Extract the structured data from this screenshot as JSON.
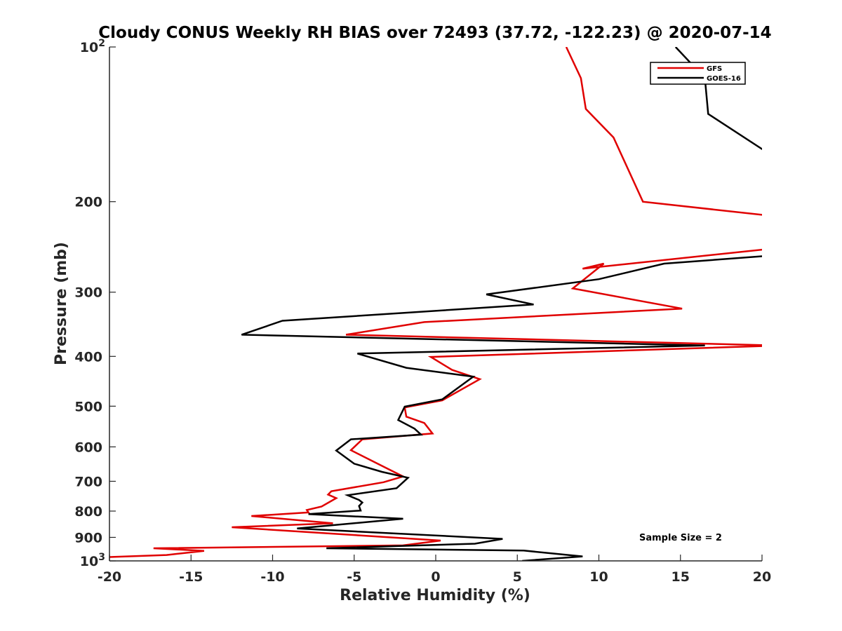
{
  "chart_data": {
    "type": "line",
    "title": "Cloudy CONUS Weekly RH BIAS over 72493 (37.72, -122.23) @ 2020-07-14",
    "xlabel": "Relative Humidity (%)",
    "ylabel": "Pressure (mb)",
    "xlim": [
      -20,
      20
    ],
    "ylim": [
      100,
      1000
    ],
    "y_scale": "log",
    "y_reversed": true,
    "grid": false,
    "legend_position": "top-right",
    "xticks": [
      -20,
      -15,
      -10,
      -5,
      0,
      5,
      10,
      15,
      20
    ],
    "xtick_labels": [
      "-20",
      "-15",
      "-10",
      "-5",
      "0",
      "5",
      "10",
      "15",
      "20"
    ],
    "yticks": [
      100,
      200,
      300,
      400,
      500,
      600,
      700,
      800,
      900,
      1000
    ],
    "ytick_labels": [
      {
        "base": "10",
        "exp": "2"
      },
      {
        "base": "200"
      },
      {
        "base": "300"
      },
      {
        "base": "400"
      },
      {
        "base": "500"
      },
      {
        "base": "600"
      },
      {
        "base": "700"
      },
      {
        "base": "800"
      },
      {
        "base": "900"
      },
      {
        "base": "10",
        "exp": "3"
      }
    ],
    "annotation": "Sample Size = 2",
    "series": [
      {
        "name": "GFS",
        "color": "#e00000",
        "points": [
          [
            8.0,
            100
          ],
          [
            8.9,
            115
          ],
          [
            9.2,
            132
          ],
          [
            10.9,
            150
          ],
          [
            12.7,
            200
          ],
          [
            20.5,
            213
          ],
          [
            null,
            null
          ],
          [
            21.0,
            246
          ],
          [
            9.0,
            270
          ],
          [
            10.3,
            264
          ],
          [
            8.4,
            295
          ],
          [
            15.1,
            323
          ],
          [
            -0.7,
            343
          ],
          [
            -5.5,
            363
          ],
          [
            21.0,
            381
          ],
          [
            -0.3,
            401
          ],
          [
            1.0,
            425
          ],
          [
            2.7,
            443
          ],
          [
            0.4,
            487
          ],
          [
            -1.9,
            503
          ],
          [
            -1.8,
            524
          ],
          [
            -0.7,
            539
          ],
          [
            -0.2,
            565
          ],
          [
            -4.5,
            580
          ],
          [
            -5.2,
            609
          ],
          [
            -3.1,
            658
          ],
          [
            -2.0,
            685
          ],
          [
            -3.2,
            703
          ],
          [
            -6.4,
            732
          ],
          [
            -6.6,
            743
          ],
          [
            -6.1,
            755
          ],
          [
            -7.0,
            784
          ],
          [
            -7.9,
            796
          ],
          [
            -7.8,
            805
          ],
          [
            -11.3,
            818
          ],
          [
            -6.3,
            845
          ],
          [
            -12.5,
            860
          ],
          [
            0.3,
            913
          ],
          [
            -2.0,
            933
          ],
          [
            -17.3,
            945
          ],
          [
            -14.2,
            956
          ],
          [
            -16.5,
            974
          ],
          [
            -20.0,
            983
          ]
        ]
      },
      {
        "name": "GOES-16",
        "color": "#000000",
        "points": [
          [
            14.7,
            100
          ],
          [
            16.5,
            115
          ],
          [
            16.7,
            135
          ],
          [
            20.0,
            158
          ],
          [
            20.3,
            160
          ],
          [
            null,
            null
          ],
          [
            20.3,
            255
          ],
          [
            14.0,
            264
          ],
          [
            10.0,
            283
          ],
          [
            3.1,
            303
          ],
          [
            6.0,
            317
          ],
          [
            -9.4,
            341
          ],
          [
            -11.9,
            363
          ],
          [
            16.5,
            381
          ],
          [
            -4.8,
            395
          ],
          [
            -1.8,
            421
          ],
          [
            2.3,
            438
          ],
          [
            0.4,
            485
          ],
          [
            -1.9,
            501
          ],
          [
            -2.3,
            532
          ],
          [
            -1.3,
            553
          ],
          [
            -0.9,
            568
          ],
          [
            -5.2,
            580
          ],
          [
            -6.1,
            610
          ],
          [
            -5.0,
            647
          ],
          [
            -3.3,
            671
          ],
          [
            -1.7,
            689
          ],
          [
            -2.4,
            722
          ],
          [
            -5.4,
            745
          ],
          [
            -4.7,
            761
          ],
          [
            -4.5,
            770
          ],
          [
            -4.7,
            782
          ],
          [
            -4.6,
            798
          ],
          [
            -7.8,
            811
          ],
          [
            -2.0,
            828
          ],
          [
            -8.5,
            865
          ],
          [
            4.1,
            906
          ],
          [
            2.4,
            926
          ],
          [
            -6.7,
            945
          ],
          [
            5.4,
            955
          ],
          [
            9.0,
            980
          ],
          [
            5.3,
            1000
          ]
        ]
      }
    ]
  },
  "colors": {
    "axis": "#262626",
    "gfs": "#e00000",
    "goes16": "#000000"
  }
}
